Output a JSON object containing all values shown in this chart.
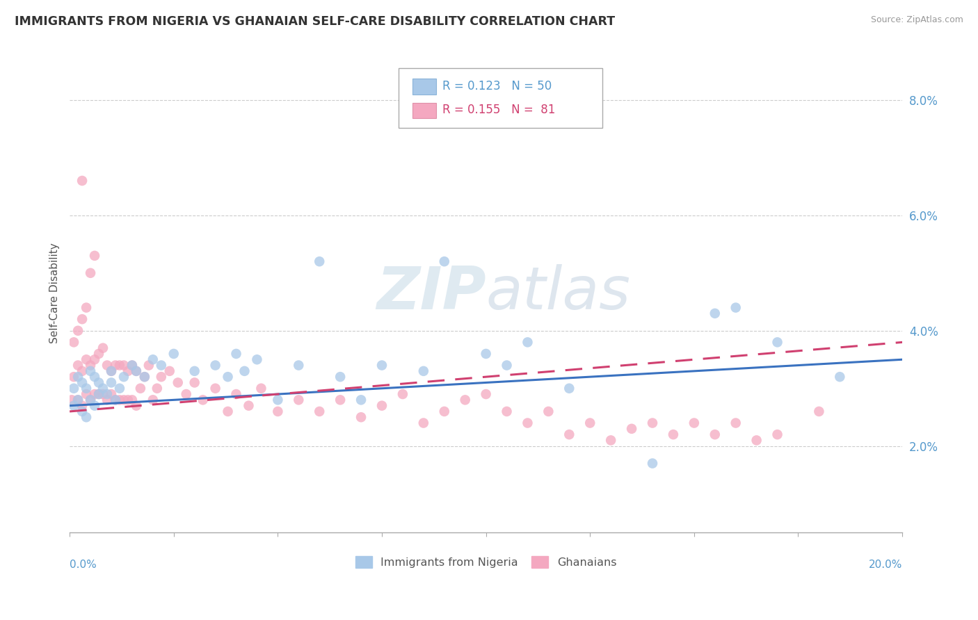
{
  "title": "IMMIGRANTS FROM NIGERIA VS GHANAIAN SELF-CARE DISABILITY CORRELATION CHART",
  "source": "Source: ZipAtlas.com",
  "ylabel": "Self-Care Disability",
  "xmin": 0.0,
  "xmax": 0.2,
  "ymin": 0.005,
  "ymax": 0.088,
  "yticks": [
    0.02,
    0.04,
    0.06,
    0.08
  ],
  "ytick_labels": [
    "2.0%",
    "4.0%",
    "6.0%",
    "8.0%"
  ],
  "nigeria_color": "#a8c8e8",
  "ghana_color": "#f4a8c0",
  "nigeria_line_color": "#3a72c0",
  "ghana_line_color": "#d04070",
  "nigeria_R": 0.123,
  "nigeria_N": 50,
  "ghana_R": 0.155,
  "ghana_N": 81,
  "nigeria_x": [
    0.001,
    0.001,
    0.002,
    0.002,
    0.003,
    0.003,
    0.004,
    0.004,
    0.005,
    0.005,
    0.006,
    0.006,
    0.007,
    0.007,
    0.008,
    0.009,
    0.01,
    0.01,
    0.011,
    0.012,
    0.013,
    0.015,
    0.016,
    0.018,
    0.02,
    0.022,
    0.025,
    0.03,
    0.035,
    0.038,
    0.04,
    0.042,
    0.045,
    0.05,
    0.055,
    0.06,
    0.065,
    0.07,
    0.075,
    0.085,
    0.09,
    0.1,
    0.105,
    0.11,
    0.12,
    0.14,
    0.155,
    0.16,
    0.17,
    0.185
  ],
  "nigeria_y": [
    0.027,
    0.03,
    0.028,
    0.032,
    0.026,
    0.031,
    0.025,
    0.03,
    0.028,
    0.033,
    0.027,
    0.032,
    0.029,
    0.031,
    0.03,
    0.029,
    0.031,
    0.033,
    0.028,
    0.03,
    0.032,
    0.034,
    0.033,
    0.032,
    0.035,
    0.034,
    0.036,
    0.033,
    0.034,
    0.032,
    0.036,
    0.033,
    0.035,
    0.028,
    0.034,
    0.052,
    0.032,
    0.028,
    0.034,
    0.033,
    0.052,
    0.036,
    0.034,
    0.038,
    0.03,
    0.017,
    0.043,
    0.044,
    0.038,
    0.032
  ],
  "ghana_x": [
    0.0005,
    0.001,
    0.001,
    0.002,
    0.002,
    0.002,
    0.003,
    0.003,
    0.003,
    0.004,
    0.004,
    0.004,
    0.005,
    0.005,
    0.005,
    0.006,
    0.006,
    0.006,
    0.007,
    0.007,
    0.008,
    0.008,
    0.009,
    0.009,
    0.01,
    0.01,
    0.011,
    0.011,
    0.012,
    0.012,
    0.013,
    0.013,
    0.014,
    0.014,
    0.015,
    0.015,
    0.016,
    0.016,
    0.017,
    0.018,
    0.019,
    0.02,
    0.021,
    0.022,
    0.024,
    0.026,
    0.028,
    0.03,
    0.032,
    0.035,
    0.038,
    0.04,
    0.043,
    0.046,
    0.05,
    0.055,
    0.06,
    0.065,
    0.07,
    0.075,
    0.08,
    0.085,
    0.09,
    0.095,
    0.1,
    0.105,
    0.11,
    0.115,
    0.12,
    0.125,
    0.13,
    0.135,
    0.14,
    0.145,
    0.15,
    0.155,
    0.16,
    0.165,
    0.17,
    0.18,
    0.003
  ],
  "ghana_y": [
    0.028,
    0.032,
    0.038,
    0.028,
    0.034,
    0.04,
    0.027,
    0.033,
    0.042,
    0.029,
    0.035,
    0.044,
    0.028,
    0.034,
    0.05,
    0.029,
    0.035,
    0.053,
    0.029,
    0.036,
    0.029,
    0.037,
    0.028,
    0.034,
    0.029,
    0.033,
    0.028,
    0.034,
    0.028,
    0.034,
    0.028,
    0.034,
    0.028,
    0.033,
    0.028,
    0.034,
    0.027,
    0.033,
    0.03,
    0.032,
    0.034,
    0.028,
    0.03,
    0.032,
    0.033,
    0.031,
    0.029,
    0.031,
    0.028,
    0.03,
    0.026,
    0.029,
    0.027,
    0.03,
    0.026,
    0.028,
    0.026,
    0.028,
    0.025,
    0.027,
    0.029,
    0.024,
    0.026,
    0.028,
    0.029,
    0.026,
    0.024,
    0.026,
    0.022,
    0.024,
    0.021,
    0.023,
    0.024,
    0.022,
    0.024,
    0.022,
    0.024,
    0.021,
    0.022,
    0.026,
    0.066
  ]
}
